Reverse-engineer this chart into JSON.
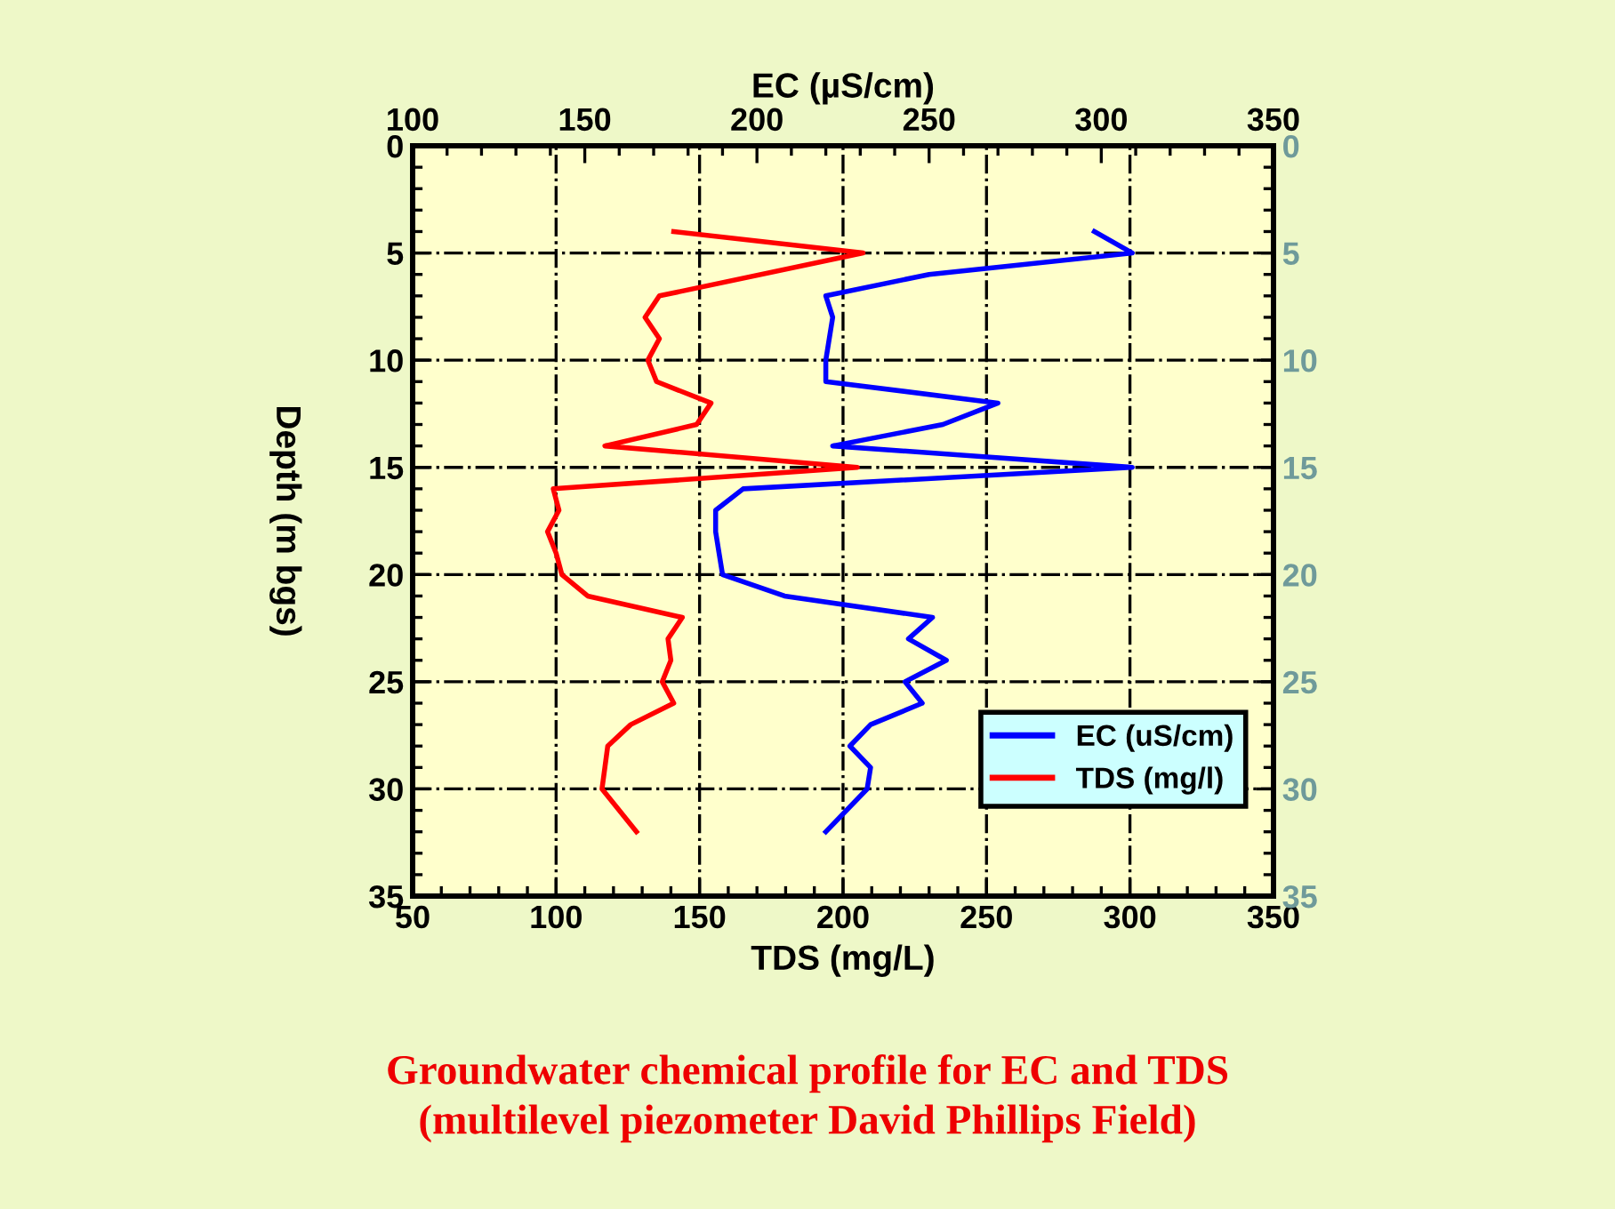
{
  "chart_data": {
    "type": "line",
    "xlabel": "TDS (mg/L)",
    "x2label": "EC (µS/cm)",
    "ylabel": "Depth (m bgs)",
    "annotations": [
      "Groundwater chemical profile for EC and TDS\n(multilevel piezometer David Phillips Field)"
    ],
    "xlim": [
      50,
      350
    ],
    "xticks": [
      50,
      100,
      150,
      200,
      250,
      300,
      350
    ],
    "x2lim": [
      100,
      350
    ],
    "x2ticks": [
      100,
      150,
      200,
      250,
      300,
      350
    ],
    "ylim": [
      35,
      0
    ],
    "yticks": [
      0,
      5,
      10,
      15,
      20,
      25,
      30,
      35
    ],
    "y2lim": [
      35,
      0
    ],
    "y2ticks": [
      0,
      5,
      10,
      15,
      20,
      25,
      30,
      35
    ],
    "grid": true,
    "legend": "bottom right",
    "line_style": "solid",
    "marker": "none",
    "series": [
      {
        "name": "EC (uS/cm)",
        "color": "#0000ff",
        "axis": "x2",
        "x": [
          298,
          309,
          250,
          220,
          222,
          221,
          220,
          220,
          270,
          254,
          222,
          309,
          196,
          188,
          188,
          189,
          190,
          208,
          251,
          244,
          255,
          243,
          248,
          233,
          227,
          233,
          232,
          220
        ],
        "values": [
          4,
          5,
          6,
          7,
          8,
          9,
          10,
          11,
          12,
          13,
          14,
          15,
          16,
          17,
          18,
          19,
          20,
          21,
          22,
          23,
          24,
          25,
          26,
          27,
          28,
          29,
          30,
          32
        ]
      },
      {
        "name": "TDS (mg/l)",
        "color": "#ff0000",
        "x": [
          141,
          207,
          136,
          131,
          136,
          132,
          135,
          154,
          149,
          117,
          205,
          99,
          101,
          97,
          100,
          102,
          111,
          144,
          139,
          140,
          137,
          141,
          126,
          118,
          117,
          116,
          128
        ],
        "values": [
          4,
          5,
          7,
          8,
          9,
          10,
          11,
          12,
          13,
          14,
          15,
          16,
          17,
          18,
          19,
          20,
          21,
          22,
          23,
          24,
          25,
          26,
          27,
          28,
          29,
          30,
          32
        ]
      }
    ]
  }
}
